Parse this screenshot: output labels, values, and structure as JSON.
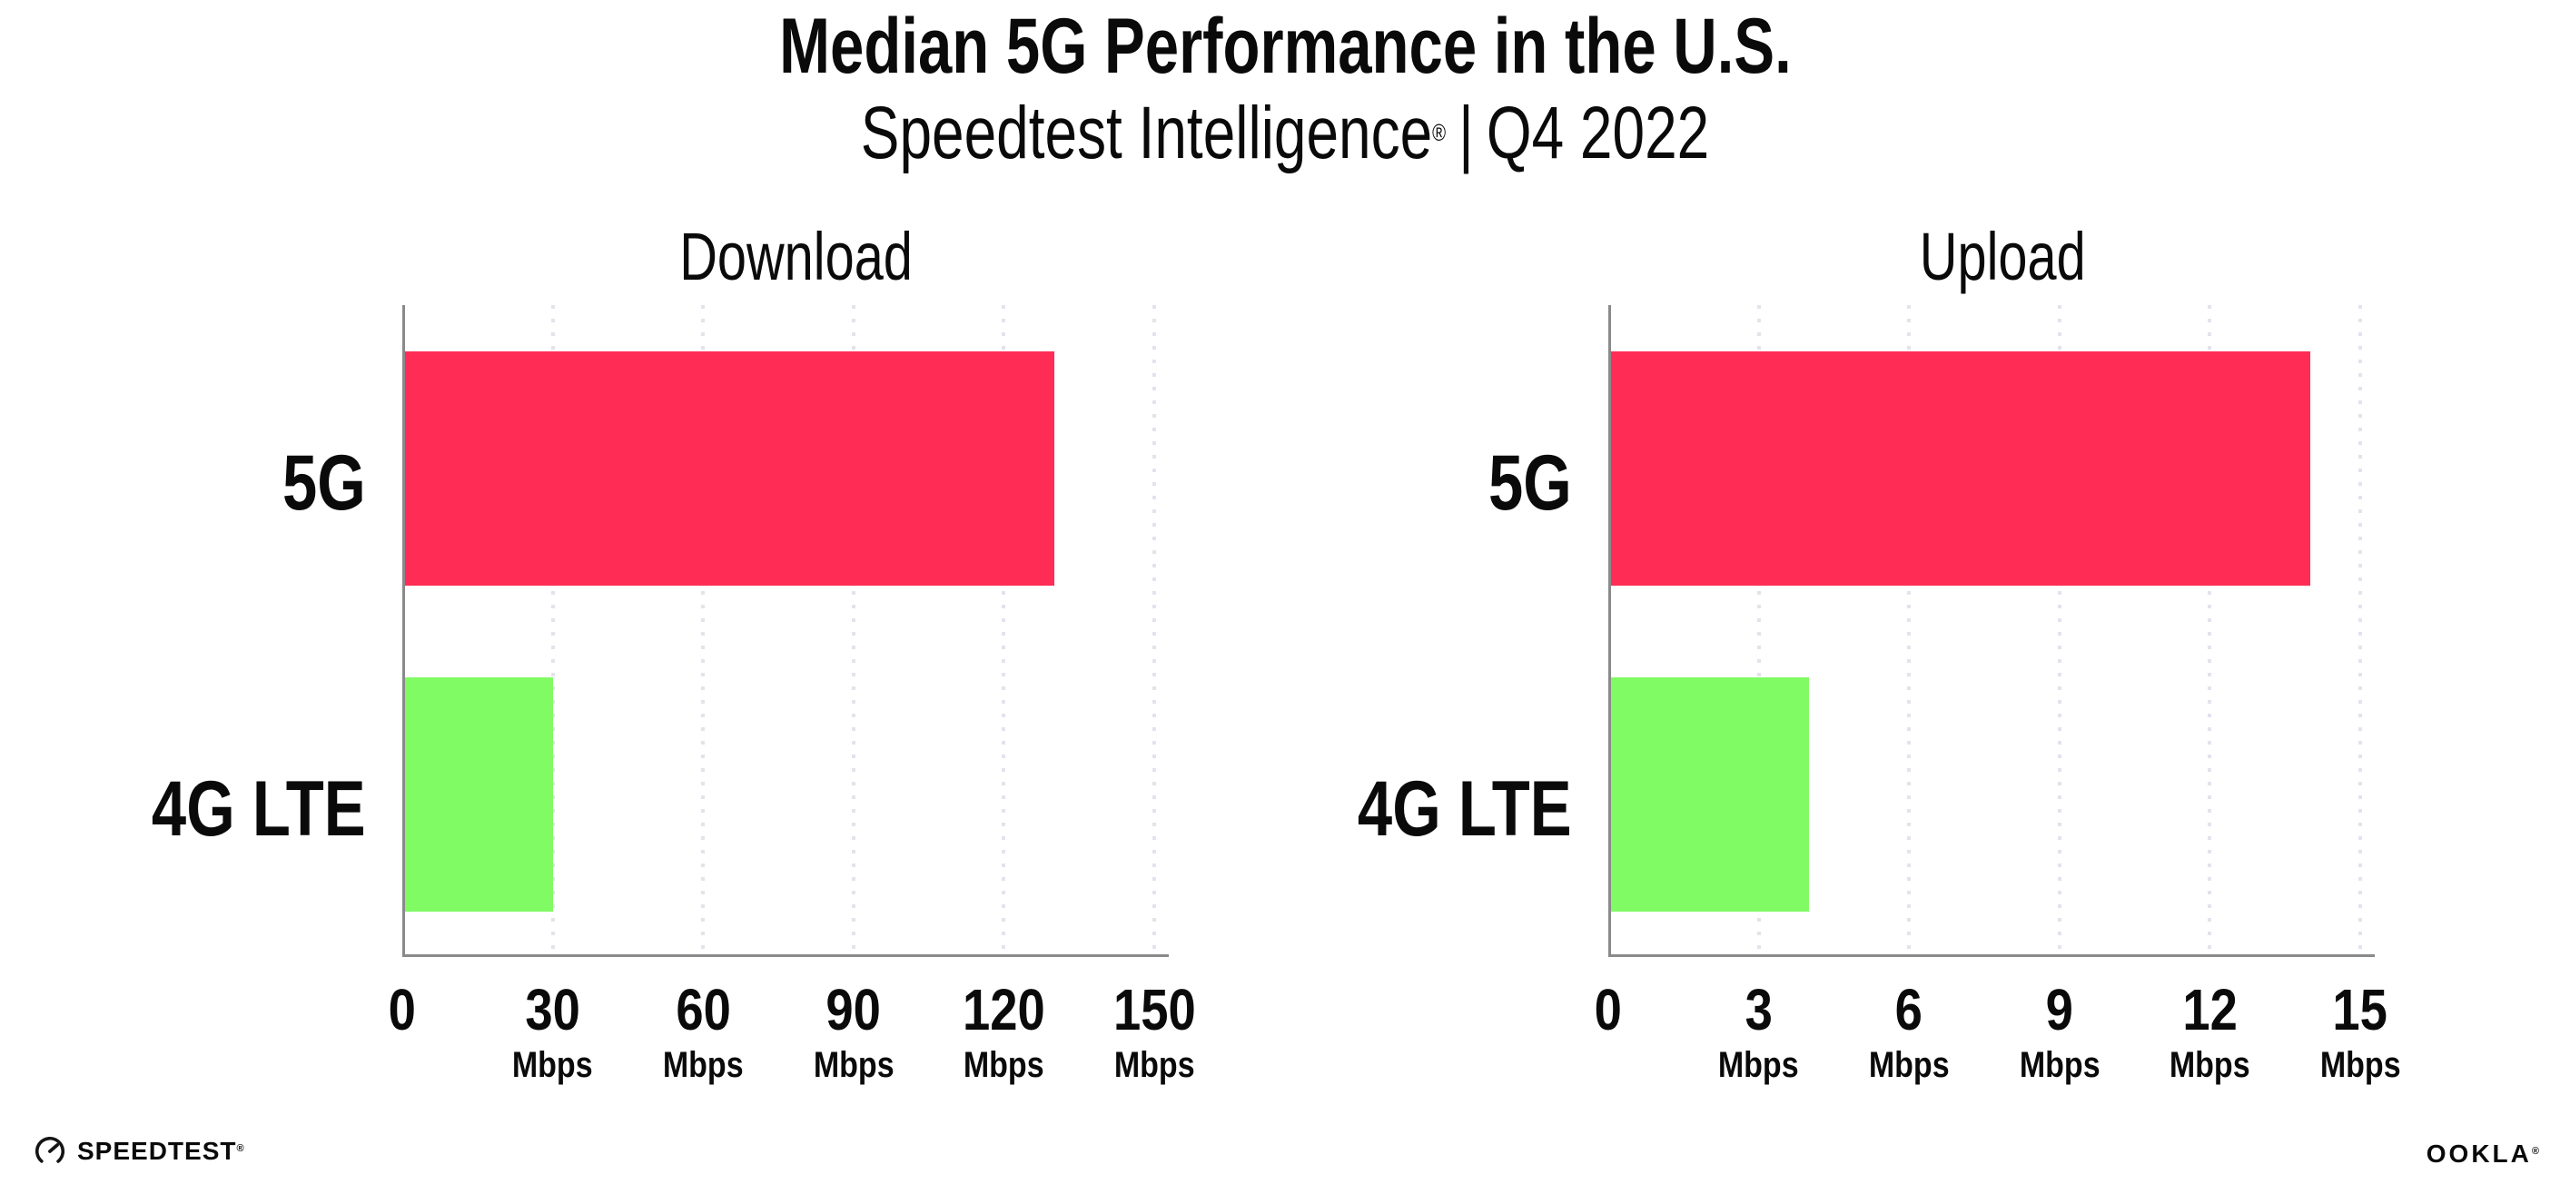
{
  "header": {
    "title": "Median 5G Performance in the U.S.",
    "subtitle_brand": "Speedtest Intelligence",
    "registered_mark": "®",
    "subtitle_separator": "|",
    "subtitle_period": "Q4 2022"
  },
  "chart_data": [
    {
      "type": "bar",
      "orientation": "horizontal",
      "title": "Download",
      "categories": [
        "5G",
        "4G LTE"
      ],
      "values": [
        130,
        30
      ],
      "unit": "Mbps",
      "xlim": [
        0,
        150
      ],
      "xticks": [
        0,
        30,
        60,
        90,
        120,
        150
      ],
      "grid": "dotted-vertical-gridlines",
      "legend": "none"
    },
    {
      "type": "bar",
      "orientation": "horizontal",
      "title": "Upload",
      "categories": [
        "5G",
        "4G LTE"
      ],
      "values": [
        14,
        4
      ],
      "unit": "Mbps",
      "xlim": [
        0,
        15
      ],
      "xticks": [
        0,
        3,
        6,
        9,
        12,
        15
      ],
      "grid": "dotted-vertical-gridlines",
      "legend": "none"
    }
  ],
  "colors": {
    "bar_5g": "#FF2D55",
    "bar_4g_lte": "#80FB64",
    "axis_line": "#8A8A8A",
    "gridline": "#E3E3ED",
    "text": "#0A0A0A"
  },
  "footer": {
    "speedtest_icon": "speedtest-gauge-icon",
    "speedtest_logo_text": "SPEEDTEST",
    "speedtest_registered_mark": "®",
    "ookla_logo_text": "OOKLA",
    "ookla_registered_mark": "®"
  }
}
